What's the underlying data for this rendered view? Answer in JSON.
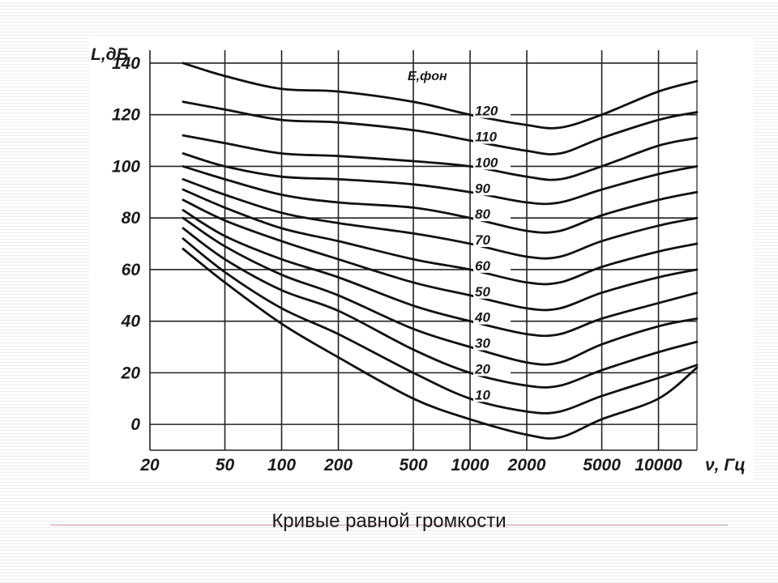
{
  "caption": "Кривые равной громкости",
  "chart_data": {
    "type": "line",
    "title": "",
    "xlabel": "ν, Гц",
    "ylabel": "L,дБ",
    "legend_title": "E,фон",
    "x_scale": "log",
    "xlim": [
      20,
      16000
    ],
    "ylim": [
      -10,
      145
    ],
    "x_ticks": [
      20,
      50,
      100,
      200,
      500,
      1000,
      2000,
      5000,
      10000
    ],
    "x_tick_labels": [
      "20",
      "50",
      "100",
      "200",
      "500",
      "1000",
      "2000",
      "5000",
      "10000"
    ],
    "y_ticks": [
      0,
      20,
      40,
      60,
      80,
      100,
      120,
      140
    ],
    "y_tick_labels": [
      "0",
      "20",
      "40",
      "60",
      "80",
      "100",
      "120",
      "140"
    ],
    "grid": true,
    "x": [
      30,
      50,
      100,
      200,
      500,
      1000,
      2000,
      3000,
      5000,
      10000,
      16000
    ],
    "series": [
      {
        "name": "120",
        "values": [
          140,
          135,
          130,
          129,
          125,
          120,
          116,
          115,
          120,
          129,
          133
        ]
      },
      {
        "name": "110",
        "values": [
          125,
          122,
          118,
          117,
          114,
          110,
          106,
          105,
          111,
          118,
          121
        ]
      },
      {
        "name": "100",
        "values": [
          112,
          109,
          105,
          104,
          102,
          100,
          96,
          95,
          100,
          108,
          111
        ]
      },
      {
        "name": "90",
        "values": [
          105,
          100,
          96,
          95,
          93,
          90,
          86,
          86,
          91,
          97,
          100
        ]
      },
      {
        "name": "80",
        "values": [
          100,
          95,
          89,
          86,
          84,
          80,
          75,
          75,
          81,
          87,
          90
        ]
      },
      {
        "name": "70",
        "values": [
          95,
          89,
          82,
          78,
          74,
          70,
          65,
          65,
          71,
          77,
          80
        ]
      },
      {
        "name": "60",
        "values": [
          91,
          84,
          76,
          71,
          64,
          60,
          55,
          55,
          61,
          67,
          70
        ]
      },
      {
        "name": "50",
        "values": [
          87,
          79,
          71,
          64,
          55,
          50,
          45,
          45,
          51,
          57,
          60
        ]
      },
      {
        "name": "40",
        "values": [
          83,
          73,
          64,
          57,
          46,
          40,
          35,
          35,
          41,
          47,
          51
        ]
      },
      {
        "name": "30",
        "values": [
          80,
          69,
          58,
          50,
          37,
          30,
          24,
          24,
          31,
          38,
          41
        ]
      },
      {
        "name": "20",
        "values": [
          76,
          64,
          52,
          44,
          29,
          20,
          15,
          15,
          21,
          28,
          32
        ]
      },
      {
        "name": "10",
        "values": [
          72,
          59,
          45,
          35,
          20,
          10,
          5,
          5,
          11,
          18,
          23
        ]
      },
      {
        "name": "",
        "values": [
          68,
          55,
          39,
          26,
          10,
          2,
          -4,
          -5,
          2,
          10,
          22
        ]
      }
    ]
  }
}
